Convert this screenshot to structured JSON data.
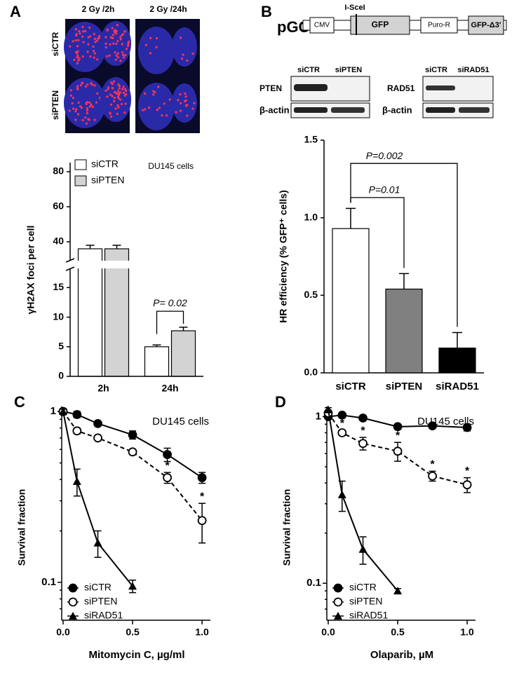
{
  "figure": {
    "panels": [
      "A",
      "B",
      "C",
      "D"
    ],
    "panel_A": {
      "columns": [
        "2 Gy /2h",
        "2 Gy /24h"
      ],
      "rows": [
        "siCTR",
        "siPTEN"
      ]
    },
    "panel_B": {
      "construct": {
        "name": "pGC",
        "site": "I-SceI",
        "elements": [
          "CMV",
          "GFP",
          "Puro-R",
          "GFP-Δ3'"
        ]
      },
      "blots": [
        {
          "lanes": [
            "siCTR",
            "siPTEN"
          ],
          "proteins": [
            "PTEN",
            "β-actin"
          ]
        },
        {
          "lanes": [
            "siCTR",
            "siRAD51"
          ],
          "proteins": [
            "RAD51",
            "β-actin"
          ]
        }
      ]
    }
  },
  "chart_data": [
    {
      "type": "bar",
      "ylabel": "γH2AX foci per cell",
      "annotation": "DU145 cells",
      "p_label": "P= 0.02",
      "categories": [
        "2h",
        "24h"
      ],
      "series": [
        {
          "name": "siCTR",
          "color": "#ffffff",
          "values": [
            36,
            5
          ],
          "errors": [
            2,
            0.3
          ]
        },
        {
          "name": "siPTEN",
          "color": "#d3d3d3",
          "values": [
            36,
            7.7
          ],
          "errors": [
            2,
            0.6
          ]
        }
      ],
      "ylim": [
        0,
        80
      ],
      "ylim_segments": [
        [
          0,
          18
        ],
        [
          30,
          80
        ]
      ],
      "yticks": [
        0,
        5,
        10,
        15,
        40,
        60,
        80
      ],
      "legend": "upper left"
    },
    {
      "type": "bar",
      "ylabel": "HR efficiency (% GFP⁺ cells)",
      "categories": [
        "siCTR",
        "siPTEN",
        "siRAD51"
      ],
      "values": [
        0.93,
        0.54,
        0.16
      ],
      "errors": [
        0.13,
        0.1,
        0.1
      ],
      "colors": [
        "#ffffff",
        "#808080",
        "#000000"
      ],
      "comparisons": [
        {
          "label": "P=0.01",
          "between": [
            "siCTR",
            "siPTEN"
          ]
        },
        {
          "label": "P=0.002",
          "between": [
            "siCTR",
            "siRAD51"
          ]
        }
      ],
      "ylim": [
        0,
        1.5
      ],
      "yticks": [
        {
          "value": 0,
          "label": "0.0"
        },
        0.5,
        {
          "value": 1,
          "label": "1.0"
        },
        1.5
      ]
    },
    {
      "type": "line",
      "xlabel": "Mitomycin C, µg/ml",
      "ylabel": "Survival fraction",
      "annotation": "DU145 cells",
      "log_y": true,
      "series": [
        {
          "name": "siCTR",
          "marker": "filled-circle",
          "dashed": false,
          "x": [
            0,
            0.1,
            0.25,
            0.5,
            0.75,
            1.0
          ],
          "values": [
            1.0,
            0.96,
            0.85,
            0.73,
            0.56,
            0.41
          ],
          "errors": [
            0.04,
            0.04,
            0.02,
            0.04,
            0.05,
            0.03
          ],
          "annotations": [
            null,
            null,
            null,
            null,
            null,
            null
          ]
        },
        {
          "name": "siPTEN",
          "marker": "open-circle",
          "dashed": true,
          "x": [
            0,
            0.1,
            0.25,
            0.5,
            0.75,
            1.0
          ],
          "values": [
            1.0,
            0.77,
            0.7,
            0.58,
            0.41,
            0.23
          ],
          "errors": [
            0.03,
            0.03,
            0.02,
            0.02,
            0.03,
            0.06
          ],
          "annotations": [
            null,
            null,
            null,
            null,
            "*",
            "*"
          ]
        },
        {
          "name": "siRAD51",
          "marker": "triangle",
          "dashed": false,
          "x": [
            0,
            0.1,
            0.25,
            0.5
          ],
          "values": [
            1.0,
            0.39,
            0.17,
            0.095
          ],
          "errors": [
            0.03,
            0.07,
            0.03,
            0.008
          ],
          "annotations": [
            null,
            null,
            null,
            null
          ]
        }
      ],
      "xlim": [
        0,
        1.06
      ],
      "xticks": [
        {
          "value": 0,
          "label": "0.0"
        },
        0.5,
        {
          "value": 1,
          "label": "1.0"
        }
      ],
      "ylim": [
        0.06,
        1.07
      ],
      "yticks": [
        0.1,
        1
      ],
      "legend": "lower left"
    },
    {
      "type": "line",
      "xlabel": "Olaparib, µM",
      "ylabel": "Survival fraction",
      "annotation": "DU145 cells",
      "log_y": true,
      "series": [
        {
          "name": "siCTR",
          "marker": "filled-circle",
          "dashed": false,
          "x": [
            0,
            0.1,
            0.25,
            0.5,
            0.75,
            1.0
          ],
          "values": [
            1.0,
            1.02,
            0.98,
            0.87,
            0.88,
            0.86
          ],
          "errors": [
            0.02,
            0.02,
            0.02,
            0.02,
            0.03,
            0.04
          ],
          "annotations": [
            null,
            null,
            null,
            null,
            null,
            null
          ]
        },
        {
          "name": "siPTEN",
          "marker": "open-circle",
          "dashed": true,
          "x": [
            0,
            0.1,
            0.25,
            0.5,
            0.75,
            1.0
          ],
          "values": [
            1.05,
            0.8,
            0.69,
            0.62,
            0.44,
            0.39
          ],
          "errors": [
            0.04,
            0.03,
            0.06,
            0.08,
            0.03,
            0.04
          ],
          "annotations": [
            null,
            "*",
            "*",
            "*",
            "*",
            "*"
          ]
        },
        {
          "name": "siRAD51",
          "marker": "triangle",
          "dashed": false,
          "x": [
            0,
            0.1,
            0.25,
            0.5
          ],
          "values": [
            1.1,
            0.34,
            0.16,
            0.09
          ],
          "errors": [
            0.03,
            0.07,
            0.03,
            0.003
          ],
          "annotations": [
            null,
            null,
            null,
            null
          ]
        }
      ],
      "xlim": [
        0,
        1.06
      ],
      "xticks": [
        {
          "value": 0,
          "label": "0.0"
        },
        0.5,
        {
          "value": 1,
          "label": "1.0"
        }
      ],
      "ylim": [
        0.06,
        1.15
      ],
      "yticks": [
        0.1,
        1
      ],
      "legend": "lower left"
    }
  ]
}
